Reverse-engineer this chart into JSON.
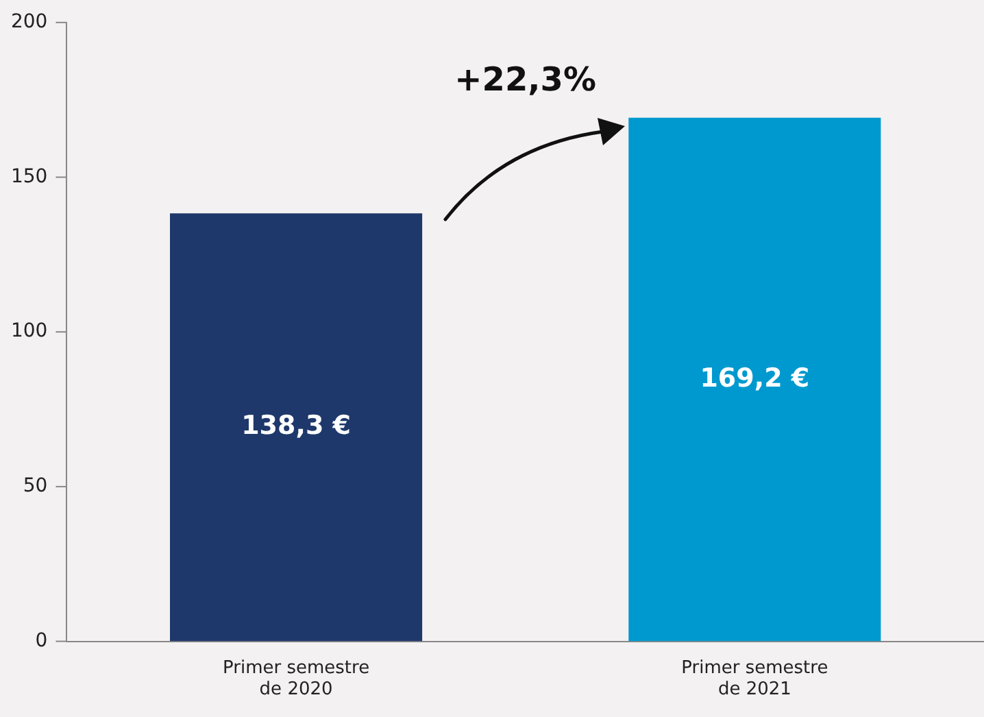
{
  "chart_data": {
    "type": "bar",
    "categories": [
      "Primer semestre de 2020",
      "Primer semestre de 2021"
    ],
    "values": [
      138.3,
      169.2
    ],
    "colors": [
      "#1f386b",
      "#0099cf"
    ],
    "value_labels": [
      "138,3 €",
      "169,2 €"
    ],
    "annotations": [
      "+22,3%"
    ],
    "ylim": [
      0,
      200
    ],
    "yticks": [
      0,
      50,
      100,
      150,
      200
    ],
    "grid": false,
    "legend": false
  }
}
